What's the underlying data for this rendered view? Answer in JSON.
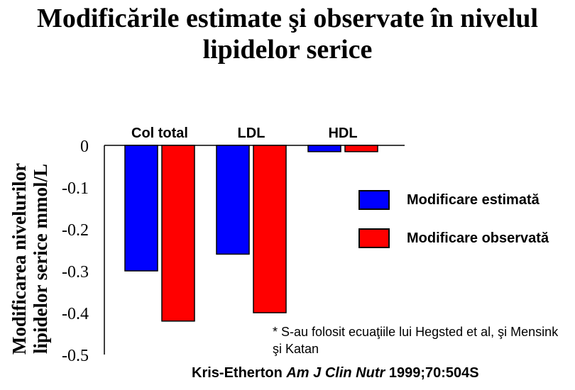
{
  "title": "Modificările estimate şi observate în nivelul lipidelor serice",
  "chart_data": {
    "type": "bar",
    "title": "Modificările estimate şi observate în nivelul lipidelor serice",
    "categories": [
      "Col total",
      "LDL",
      "HDL"
    ],
    "series": [
      {
        "name": "Modificare estimată",
        "values": [
          -0.3,
          -0.26,
          -0.015
        ],
        "color": "#0000ff"
      },
      {
        "name": "Modificare observată",
        "values": [
          -0.42,
          -0.4,
          -0.015
        ],
        "color": "#ff0000"
      }
    ],
    "ylabel": "Modificarea nivelurilor lipidelor serice mmol/L",
    "xlabel": "",
    "ylim": [
      -0.5,
      0
    ],
    "yticks": [
      0,
      -0.1,
      -0.2,
      -0.3,
      -0.4,
      -0.5
    ],
    "ytick_labels": [
      "0",
      "-0.1",
      "-0.2",
      "-0.3",
      "-0.4",
      "-0.5"
    ],
    "legend_position": "right",
    "grid": false
  },
  "footnote": "* S-au folosit ecuaţiile lui Hegsted et al, şi Mensink şi Katan",
  "citation": {
    "author": "Kris-Etherton",
    "journal": "Am J Clin Nutr",
    "ref": "1999;70:504S"
  }
}
